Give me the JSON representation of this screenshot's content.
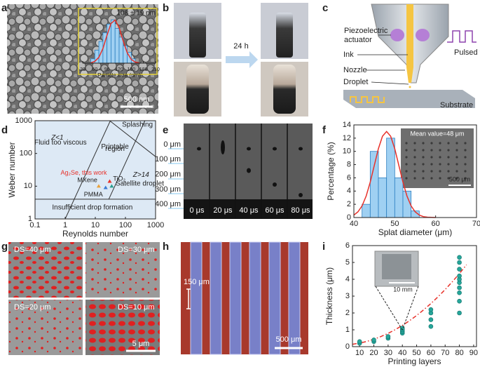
{
  "panel_labels": [
    "a",
    "b",
    "c",
    "d",
    "e",
    "f",
    "g",
    "h",
    "i"
  ],
  "panel_a": {
    "scale_bar": "500 nm"
  },
  "panel_b": {
    "time": "24 h"
  },
  "panel_c": {
    "actuator": [
      "Piezoelectric",
      "actuator"
    ],
    "ink": "Ink",
    "nozzle": "Nozzle",
    "droplet": "Droplet",
    "pulsed": "Pulsed voltage",
    "substrate": "Substrate"
  },
  "panel_e": {
    "depths": [
      "0 μm",
      "100 μm",
      "200 μm",
      "300 μm",
      "400 μm"
    ],
    "times": [
      "0 μs",
      "20 μs",
      "40 μs",
      "60 μs",
      "80 μs"
    ]
  },
  "panel_f": {
    "inset_title": "Mean value=48 μm",
    "inset_scale": "500 μm"
  },
  "panel_g": {
    "labels": [
      "DS=40 μm",
      "DS=30 μm",
      "DS=20 μm",
      "DS=10 μm"
    ],
    "scale_bar": "5 μm"
  },
  "panel_h": {
    "width": "150 μm",
    "scale_bar": "500 μm"
  },
  "panel_i": {
    "inset_scale": "10 mm"
  },
  "chart_data": [
    {
      "type": "regime",
      "xlabel": "Reynolds number",
      "ylabel": "Weber number",
      "log": true,
      "xlim": [
        0.1,
        1000
      ],
      "ylim": [
        1,
        1000
      ],
      "xticks": [
        0.1,
        1,
        10,
        100,
        1000
      ],
      "yticks": [
        1,
        10,
        100,
        1000
      ],
      "regions": [
        "Z<1",
        "Fluid too viscous",
        "Printable",
        "region",
        "Splashing",
        "Z>14",
        "Satellite droplet",
        "Insufficient drop formation"
      ],
      "boundaries": [
        {
          "x": [
            1,
            31.6
          ],
          "values": [
            1,
            1000
          ]
        },
        {
          "x": [
            28,
            443
          ],
          "values": [
            4,
            1000
          ]
        },
        {
          "x": [
            30,
            1000
          ],
          "values": [
            1000,
            80
          ]
        },
        {
          "x": [
            0.1,
            1000
          ],
          "values": [
            4,
            4
          ]
        }
      ],
      "background": "#dde9f5",
      "series": [
        {
          "name": "Ag₂Se, this work",
          "color": "#e8312a",
          "x": [
            30
          ],
          "values": [
            14
          ]
        },
        {
          "name": "MXene",
          "color": "#e9a23b",
          "x": [
            13
          ],
          "values": [
            10
          ]
        },
        {
          "name": "TiO₂",
          "color": "#2a9d8f",
          "x": [
            35
          ],
          "values": [
            10
          ]
        },
        {
          "name": "PMMA",
          "color": "#3a7bd5",
          "x": [
            22
          ],
          "values": [
            9
          ]
        }
      ]
    },
    {
      "type": "histogram",
      "xlabel": "Splat diameter (μm)",
      "ylabel": "Percentage (%)",
      "xlim": [
        40,
        70
      ],
      "ylim": [
        0,
        14
      ],
      "xticks": [
        40,
        50,
        60,
        70
      ],
      "yticks": [
        0,
        2,
        4,
        6,
        8,
        10,
        12,
        14
      ],
      "bins": [
        42,
        44,
        46,
        48,
        50,
        52,
        54,
        56
      ],
      "values": [
        2,
        10,
        6,
        12,
        6,
        4,
        1
      ],
      "color": "#9fd0f2",
      "fit": {
        "color": "#e8312a",
        "x": [
          40,
          41,
          42,
          43,
          44,
          45,
          46,
          47,
          48,
          49,
          50,
          51,
          52,
          53,
          54,
          55,
          56,
          57,
          58,
          59,
          60
        ],
        "values": [
          0.37,
          0.86,
          1.76,
          3.23,
          5.35,
          7.88,
          10.41,
          12.29,
          13,
          12.29,
          10.41,
          7.88,
          5.35,
          3.23,
          1.76,
          0.86,
          0.37,
          0.14,
          0.05,
          0.02,
          0
        ]
      }
    },
    {
      "type": "scatter",
      "xlabel": "Printing layers",
      "ylabel": "Thickness (μm)",
      "xlim": [
        5,
        92
      ],
      "ylim": [
        0,
        6
      ],
      "xticks": [
        10,
        20,
        30,
        40,
        50,
        60,
        70,
        80,
        90
      ],
      "yticks": [
        0,
        1,
        2,
        3,
        4,
        5,
        6
      ],
      "color": "#26a69a",
      "x": [
        10,
        10,
        20,
        20,
        30,
        30,
        40,
        40,
        40,
        40,
        60,
        60,
        60,
        60,
        80,
        80,
        80,
        80,
        80,
        80,
        80,
        80,
        80,
        80
      ],
      "values": [
        0.2,
        0.3,
        0.3,
        0.4,
        0.5,
        0.6,
        0.8,
        0.9,
        1.0,
        1.1,
        1.2,
        1.6,
        2.0,
        2.2,
        2.0,
        2.7,
        3.2,
        3.5,
        3.8,
        4.0,
        4.2,
        4.6,
        5.0,
        5.3
      ],
      "fit": {
        "color": "#e8312a",
        "x": [
          5,
          10,
          15,
          20,
          25,
          30,
          35,
          40,
          45,
          50,
          55,
          60,
          65,
          70,
          75,
          80,
          85
        ],
        "values": [
          0.14,
          0.21,
          0.31,
          0.44,
          0.6,
          0.79,
          1.01,
          1.26,
          1.54,
          1.85,
          2.19,
          2.56,
          2.96,
          3.39,
          3.85,
          4.34,
          4.86
        ]
      }
    },
    {
      "type": "histogram",
      "xlabel": "Particle size (nm)",
      "annotation": "108 ± 19 nm",
      "xlim": [
        30,
        210
      ],
      "ylim": [
        0,
        22
      ],
      "xticks": [
        30,
        60,
        90,
        120,
        150,
        180,
        210
      ],
      "bins": [
        50,
        60,
        70,
        80,
        90,
        100,
        110,
        120,
        130,
        140,
        150,
        160
      ],
      "values": [
        2,
        6,
        10,
        14,
        18,
        20,
        16,
        12,
        8,
        5,
        2
      ],
      "color": "#9fd0f2",
      "fit": {
        "color": "#e8312a",
        "x": [
          50,
          60,
          70,
          80,
          90,
          100,
          110,
          120,
          130,
          140,
          150,
          160,
          170
        ],
        "values": [
          0.19,
          0.82,
          2.7,
          6.75,
          12.8,
          18.3,
          19.9,
          16.4,
          10.2,
          4.8,
          1.7,
          0.47,
          0.1
        ]
      }
    }
  ]
}
